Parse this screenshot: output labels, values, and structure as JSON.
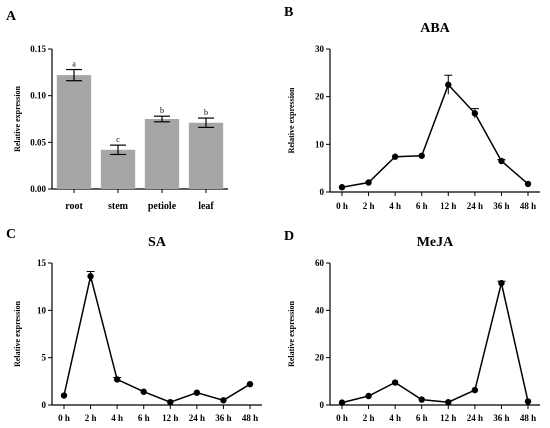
{
  "chart_data": [
    {
      "panel": "A",
      "type": "bar",
      "title": "",
      "ylabel": "Relative expression",
      "xlabel": "",
      "categories": [
        "root",
        "stem",
        "petiole",
        "leaf"
      ],
      "values": [
        0.122,
        0.042,
        0.075,
        0.071
      ],
      "errors": [
        0.006,
        0.005,
        0.003,
        0.005
      ],
      "significance": [
        "a",
        "c",
        "b",
        "b"
      ],
      "ylim": [
        0,
        0.15
      ],
      "yticks": [
        "0.00",
        "0.05",
        "0.10",
        "0.15"
      ],
      "bar_color": "#a6a6a6"
    },
    {
      "panel": "B",
      "type": "line",
      "title": "ABA",
      "ylabel": "Relative expression",
      "xlabel": "",
      "categories": [
        "0 h",
        "2 h",
        "4 h",
        "6 h",
        "12 h",
        "24 h",
        "36 h",
        "48 h"
      ],
      "values": [
        1.0,
        2.0,
        7.4,
        7.6,
        22.5,
        16.5,
        6.5,
        1.7
      ],
      "errors": [
        0.1,
        0.2,
        0.2,
        0.2,
        2.0,
        1.0,
        0.3,
        0.2
      ],
      "ylim": [
        0,
        30
      ],
      "yticks": [
        "0",
        "10",
        "20",
        "30"
      ]
    },
    {
      "panel": "C",
      "type": "line",
      "title": "SA",
      "ylabel": "Relative expression",
      "xlabel": "",
      "categories": [
        "0 h",
        "2 h",
        "4 h",
        "6 h",
        "12 h",
        "24 h",
        "36 h",
        "48 h"
      ],
      "values": [
        1.0,
        13.6,
        2.7,
        1.4,
        0.3,
        1.3,
        0.5,
        2.2
      ],
      "errors": [
        0.05,
        0.5,
        0.2,
        0.1,
        0.05,
        0.1,
        0.05,
        0.1
      ],
      "ylim": [
        0,
        15
      ],
      "yticks": [
        "0",
        "5",
        "10",
        "15"
      ]
    },
    {
      "panel": "D",
      "type": "line",
      "title": "MeJA",
      "ylabel": "Relative expression",
      "xlabel": "",
      "categories": [
        "0 h",
        "2 h",
        "4 h",
        "6 h",
        "12 h",
        "24 h",
        "36 h",
        "48 h"
      ],
      "values": [
        1.0,
        3.8,
        9.5,
        2.3,
        1.2,
        6.3,
        51.5,
        1.5
      ],
      "errors": [
        0.1,
        0.3,
        0.5,
        0.2,
        0.1,
        0.4,
        0.8,
        0.1
      ],
      "ylim": [
        0,
        60
      ],
      "yticks": [
        "0",
        "20",
        "40",
        "60"
      ]
    }
  ]
}
